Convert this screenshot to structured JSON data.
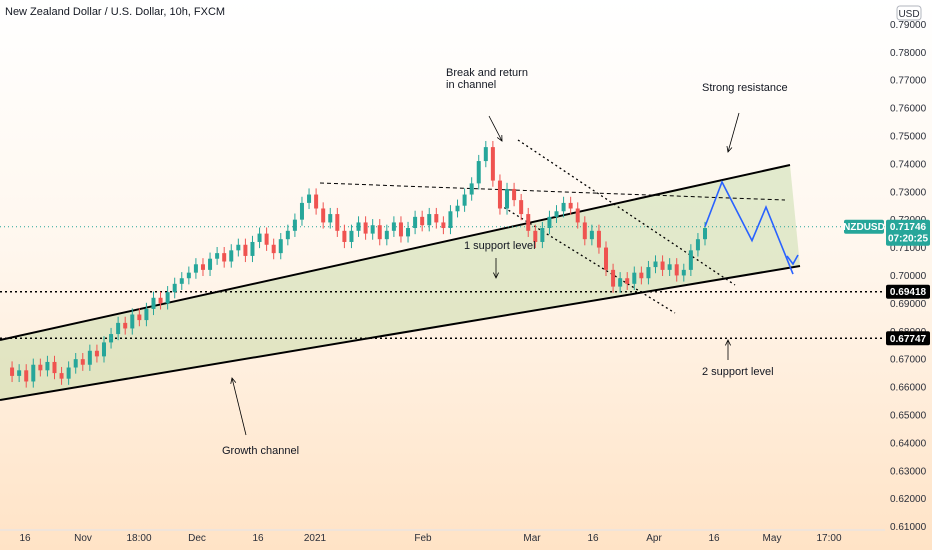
{
  "chart_data": {
    "type": "candlestick",
    "title": "New Zealand Dollar / U.S. Dollar, 10h, FXCM",
    "currency": "USD",
    "ylim": [
      0.605,
      0.7975
    ],
    "y_ticks": [
      "0.61000",
      "0.62000",
      "0.63000",
      "0.64000",
      "0.65000",
      "0.66000",
      "0.67000",
      "0.68000",
      "0.69000",
      "0.70000",
      "0.71000",
      "0.72000",
      "0.73000",
      "0.74000",
      "0.75000",
      "0.76000",
      "0.77000",
      "0.78000",
      "0.79000"
    ],
    "x_ticks": [
      "16",
      "Nov",
      "18:00",
      "Dec",
      "16",
      "2021",
      "Feb",
      "Mar",
      "16",
      "Apr",
      "16",
      "May",
      "17:00"
    ],
    "close_path": [
      0.667,
      0.664,
      0.666,
      0.662,
      0.668,
      0.666,
      0.669,
      0.665,
      0.663,
      0.667,
      0.67,
      0.668,
      0.673,
      0.671,
      0.676,
      0.679,
      0.683,
      0.681,
      0.686,
      0.684,
      0.688,
      0.692,
      0.69,
      0.694,
      0.697,
      0.699,
      0.701,
      0.704,
      0.702,
      0.706,
      0.708,
      0.705,
      0.709,
      0.711,
      0.707,
      0.712,
      0.715,
      0.711,
      0.708,
      0.713,
      0.716,
      0.72,
      0.726,
      0.729,
      0.724,
      0.719,
      0.722,
      0.716,
      0.712,
      0.716,
      0.719,
      0.715,
      0.718,
      0.713,
      0.716,
      0.719,
      0.714,
      0.717,
      0.721,
      0.718,
      0.722,
      0.719,
      0.717,
      0.723,
      0.725,
      0.729,
      0.733,
      0.741,
      0.746,
      0.734,
      0.724,
      0.731,
      0.727,
      0.722,
      0.716,
      0.712,
      0.717,
      0.721,
      0.723,
      0.726,
      0.724,
      0.719,
      0.713,
      0.716,
      0.71,
      0.702,
      0.696,
      0.699,
      0.697,
      0.701,
      0.699,
      0.703,
      0.705,
      0.702,
      0.704,
      0.7,
      0.702,
      0.709,
      0.713,
      0.717
    ],
    "current_price": "0.71746",
    "countdown": "07:20:25",
    "symbol": "NZDUSD",
    "levels": [
      "0.69418",
      "0.67747"
    ],
    "level_values": [
      0.69418,
      0.67747
    ],
    "annotations": [
      "Break and return in channel",
      "Strong resistance",
      "1 support level",
      "2 support level",
      "Growth channel"
    ],
    "projection": [
      0.7175,
      0.7335,
      0.7125,
      0.7245,
      0.7005
    ],
    "colors": {
      "up": "#26a69a",
      "down": "#ef5350",
      "channel": "#000000",
      "projection": "#2962ff",
      "price_label": "#26a69a"
    }
  }
}
